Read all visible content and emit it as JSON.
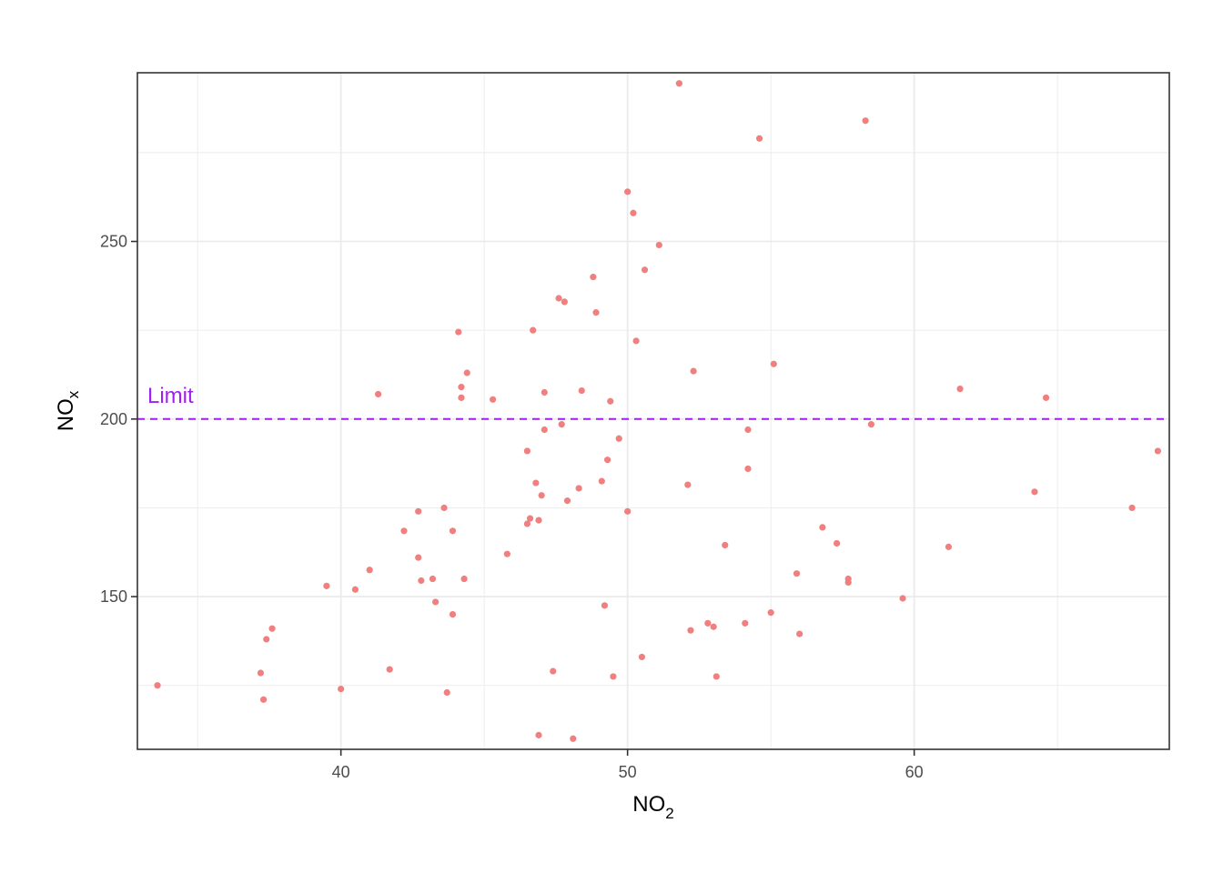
{
  "chart_data": {
    "type": "scatter",
    "title": "",
    "xlabel": {
      "base": "NO",
      "subscript": "2"
    },
    "ylabel": {
      "base": "NO",
      "subscript": "x"
    },
    "xlim": [
      32.9,
      68.9
    ],
    "ylim": [
      107,
      297.5
    ],
    "x_ticks": [
      40,
      50,
      60
    ],
    "x_tick_labels": [
      "40",
      "50",
      "60"
    ],
    "x_minor_ticks": [
      35,
      45,
      55,
      65
    ],
    "y_ticks": [
      150,
      200,
      250
    ],
    "y_tick_labels": [
      "150",
      "200",
      "250"
    ],
    "y_minor_ticks": [
      125,
      175,
      225,
      275
    ],
    "grid": true,
    "legend": "none",
    "point_color": "#f08080",
    "reference_line": {
      "y": 200,
      "color": "#a020f0",
      "style": "dashed",
      "label": "Limit"
    },
    "series": [
      {
        "points": [
          [
            33.6,
            125
          ],
          [
            37.2,
            128.5
          ],
          [
            37.3,
            121
          ],
          [
            37.4,
            138
          ],
          [
            37.6,
            141
          ],
          [
            39.5,
            153
          ],
          [
            40.0,
            124
          ],
          [
            40.5,
            152
          ],
          [
            41.0,
            157.5
          ],
          [
            41.3,
            207
          ],
          [
            41.7,
            129.5
          ],
          [
            42.2,
            168.5
          ],
          [
            42.7,
            174
          ],
          [
            42.7,
            161
          ],
          [
            42.8,
            154.5
          ],
          [
            43.2,
            155
          ],
          [
            43.3,
            148.5
          ],
          [
            43.6,
            175
          ],
          [
            43.7,
            123
          ],
          [
            43.9,
            168.5
          ],
          [
            43.9,
            145
          ],
          [
            44.1,
            224.5
          ],
          [
            44.2,
            209
          ],
          [
            44.2,
            206
          ],
          [
            44.3,
            155
          ],
          [
            44.4,
            213
          ],
          [
            45.3,
            205.5
          ],
          [
            45.8,
            162
          ],
          [
            46.5,
            191
          ],
          [
            46.5,
            170.5
          ],
          [
            46.6,
            172
          ],
          [
            46.7,
            225
          ],
          [
            46.8,
            182
          ],
          [
            46.9,
            171.5
          ],
          [
            46.9,
            111
          ],
          [
            47.0,
            178.5
          ],
          [
            47.1,
            207.5
          ],
          [
            47.1,
            197
          ],
          [
            47.4,
            129
          ],
          [
            47.6,
            234
          ],
          [
            47.7,
            198.5
          ],
          [
            47.8,
            233
          ],
          [
            47.9,
            177
          ],
          [
            48.1,
            110
          ],
          [
            48.3,
            180.5
          ],
          [
            48.4,
            208
          ],
          [
            48.8,
            240
          ],
          [
            48.9,
            230
          ],
          [
            49.1,
            182.5
          ],
          [
            49.2,
            147.5
          ],
          [
            49.3,
            188.5
          ],
          [
            49.4,
            205
          ],
          [
            49.5,
            127.5
          ],
          [
            49.7,
            194.5
          ],
          [
            50.0,
            264
          ],
          [
            50.0,
            174
          ],
          [
            50.2,
            258
          ],
          [
            50.3,
            222
          ],
          [
            50.5,
            133
          ],
          [
            50.6,
            242
          ],
          [
            51.1,
            249
          ],
          [
            51.8,
            294.5
          ],
          [
            52.1,
            181.5
          ],
          [
            52.2,
            140.5
          ],
          [
            52.3,
            213.5
          ],
          [
            52.8,
            142.5
          ],
          [
            53.0,
            141.5
          ],
          [
            53.1,
            127.5
          ],
          [
            53.4,
            164.5
          ],
          [
            54.1,
            142.5
          ],
          [
            54.2,
            186
          ],
          [
            54.2,
            197
          ],
          [
            54.6,
            279
          ],
          [
            55.0,
            145.5
          ],
          [
            55.1,
            215.5
          ],
          [
            55.9,
            156.5
          ],
          [
            56.0,
            139.5
          ],
          [
            56.8,
            169.5
          ],
          [
            57.3,
            165
          ],
          [
            57.7,
            155
          ],
          [
            57.7,
            154
          ],
          [
            58.3,
            284
          ],
          [
            58.5,
            198.5
          ],
          [
            59.6,
            149.5
          ],
          [
            61.2,
            164
          ],
          [
            61.6,
            208.5
          ],
          [
            64.2,
            179.5
          ],
          [
            64.6,
            206
          ],
          [
            67.6,
            175
          ],
          [
            68.5,
            191
          ]
        ]
      }
    ]
  }
}
